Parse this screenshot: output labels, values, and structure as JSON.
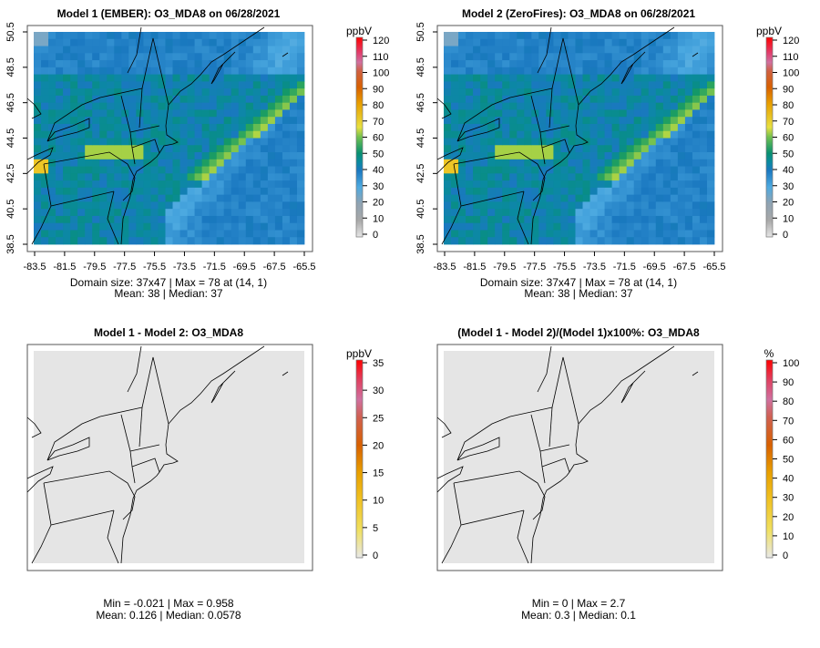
{
  "chart_data": [
    {
      "type": "heatmap",
      "title": "Model 1 (EMBER): O3_MDA8 on 06/28/2021",
      "units": "ppbV",
      "x_ticks": [
        "-83.5",
        "-81.5",
        "-79.5",
        "-77.5",
        "-75.5",
        "-73.5",
        "-71.5",
        "-69.5",
        "-67.5",
        "-65.5"
      ],
      "y_ticks": [
        "50.5",
        "48.5",
        "46.5",
        "44.5",
        "42.5",
        "40.5",
        "38.5"
      ],
      "xlim": [
        -83.5,
        -65.5
      ],
      "ylim": [
        38.5,
        50.5
      ],
      "colorbar_ticks": [
        "120",
        "110",
        "100",
        "90",
        "80",
        "70",
        "60",
        "50",
        "40",
        "30",
        "20",
        "10",
        "0"
      ],
      "colorbar_range": [
        0,
        120
      ],
      "stats_line1": "Domain size: 37x47 | Max = 78 at (14, 1)",
      "stats_line2": "Mean: 38 |  Median: 37",
      "max": 78,
      "mean": 38,
      "median": 37
    },
    {
      "type": "heatmap",
      "title": "Model 2 (ZeroFires): O3_MDA8 on 06/28/2021",
      "units": "ppbV",
      "x_ticks": [
        "-83.5",
        "-81.5",
        "-79.5",
        "-77.5",
        "-75.5",
        "-73.5",
        "-71.5",
        "-69.5",
        "-67.5",
        "-65.5"
      ],
      "y_ticks": [
        "50.5",
        "48.5",
        "46.5",
        "44.5",
        "42.5",
        "40.5",
        "38.5"
      ],
      "xlim": [
        -83.5,
        -65.5
      ],
      "ylim": [
        38.5,
        50.5
      ],
      "colorbar_ticks": [
        "120",
        "110",
        "100",
        "90",
        "80",
        "70",
        "60",
        "50",
        "40",
        "30",
        "20",
        "10",
        "0"
      ],
      "colorbar_range": [
        0,
        120
      ],
      "stats_line1": "Domain size: 37x47 | Max = 78 at (14, 1)",
      "stats_line2": "Mean: 38 |  Median: 37",
      "max": 78,
      "mean": 38,
      "median": 37
    },
    {
      "type": "heatmap",
      "title": "Model 1 - Model 2: O3_MDA8",
      "units": "ppbV",
      "colorbar_ticks": [
        "35",
        "30",
        "25",
        "20",
        "15",
        "10",
        "5",
        "0"
      ],
      "colorbar_range": [
        0,
        35
      ],
      "stats_line1": "Min = -0.021 | Max = 0.958",
      "stats_line2": "Mean: 0.126 |  Median: 0.0578",
      "min": -0.021,
      "max": 0.958,
      "mean": 0.126,
      "median": 0.0578
    },
    {
      "type": "heatmap",
      "title": "(Model 1 - Model 2)/(Model 1)x100%: O3_MDA8",
      "units": "%",
      "colorbar_ticks": [
        "100",
        "90",
        "80",
        "70",
        "60",
        "50",
        "40",
        "30",
        "20",
        "10",
        "0"
      ],
      "colorbar_range": [
        0,
        100
      ],
      "stats_line1": "Min = 0 | Max = 2.7",
      "stats_line2": "Mean: 0.3 |  Median: 0.1",
      "min": 0,
      "max": 2.7,
      "mean": 0.3,
      "median": 0.1
    }
  ]
}
